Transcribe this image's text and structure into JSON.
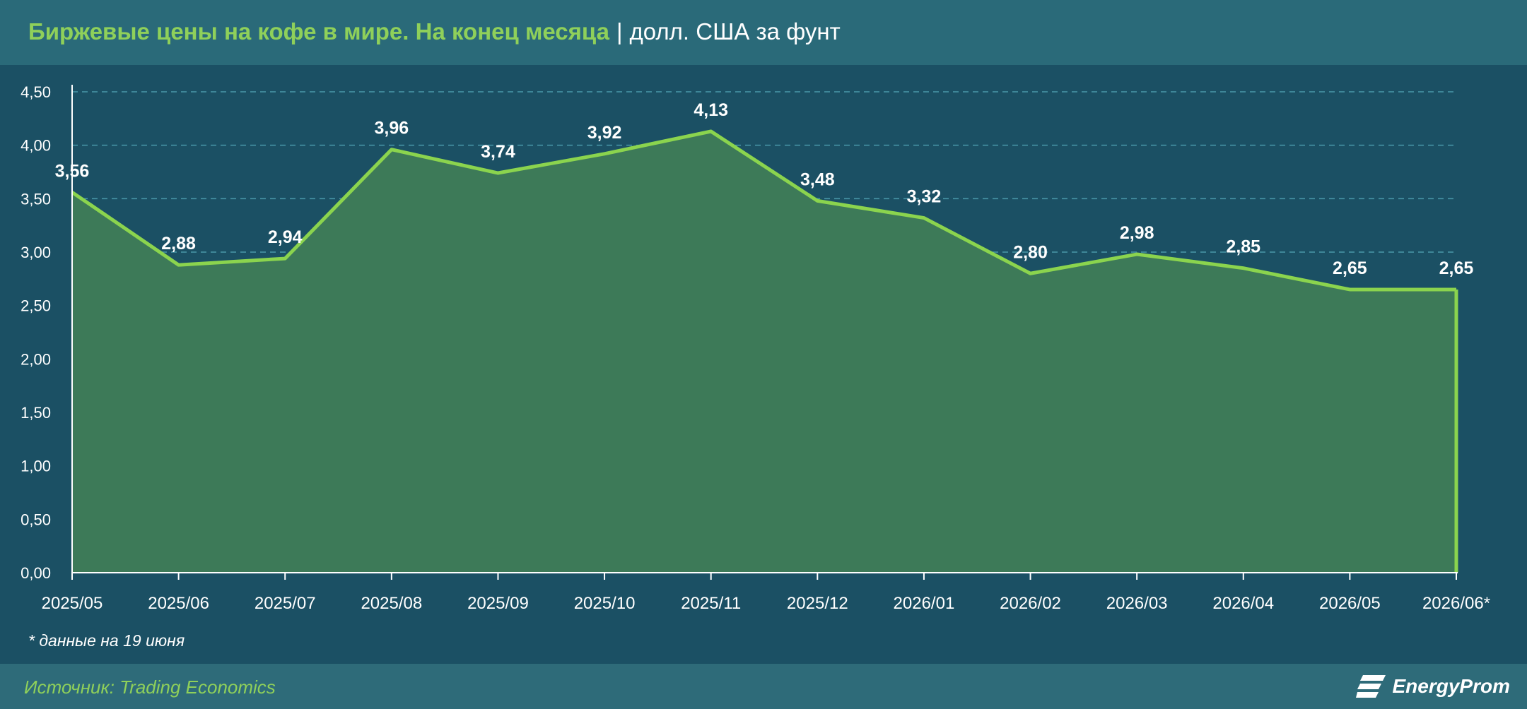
{
  "header": {
    "title": "Биржевые цены на кофе в мире. На конец месяца",
    "separator": "|",
    "unit": "долл. США за фунт"
  },
  "note": "* данные на 19 июня",
  "footer": {
    "source": "Источник: Trading Economics",
    "brand": "EnergyProm"
  },
  "colors": {
    "line": "#8bd44e",
    "area": "#3d7a58",
    "grid": "#4a98aa",
    "title_accent": "#8fd05a"
  },
  "chart_data": {
    "type": "area",
    "categories": [
      "2025/05",
      "2025/06",
      "2025/07",
      "2025/08",
      "2025/09",
      "2025/10",
      "2025/11",
      "2025/12",
      "2026/01",
      "2026/02",
      "2026/03",
      "2026/04",
      "2026/05",
      "2026/06*"
    ],
    "values": [
      3.56,
      2.88,
      2.94,
      3.96,
      3.74,
      3.92,
      4.13,
      3.48,
      3.32,
      2.8,
      2.98,
      2.85,
      2.65,
      2.65
    ],
    "value_labels": [
      "3,56",
      "2,88",
      "2,94",
      "3,96",
      "3,74",
      "3,92",
      "4,13",
      "3,48",
      "3,32",
      "2,80",
      "2,98",
      "2,85",
      "2,65",
      "2,65"
    ],
    "yticks": [
      0,
      0.5,
      1,
      1.5,
      2,
      2.5,
      3,
      3.5,
      4,
      4.5
    ],
    "ytick_labels": [
      "0,00",
      "0,50",
      "1,00",
      "1,50",
      "2,00",
      "2,50",
      "3,00",
      "3,50",
      "4,00",
      "4,50"
    ],
    "ylim": [
      0,
      4.5
    ],
    "grid": true,
    "legend": false
  }
}
